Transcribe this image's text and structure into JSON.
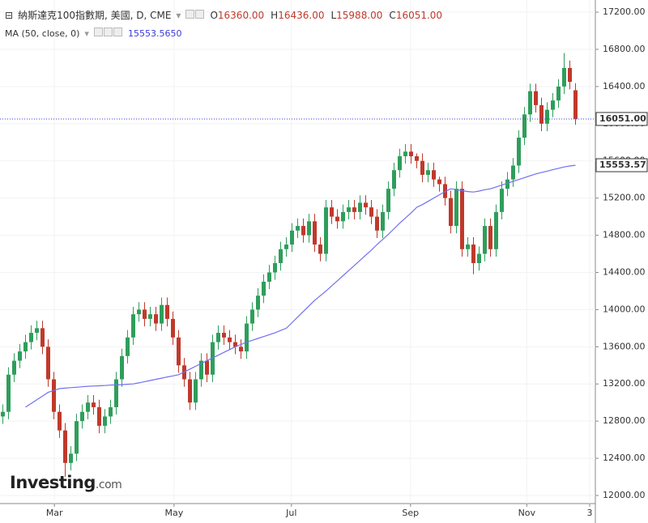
{
  "chart_data": {
    "type": "candlestick",
    "header": {
      "symbol": "納斯達克100指數期, 美國, D, CME",
      "ohlc": [
        {
          "key": "O",
          "text": "16360.00"
        },
        {
          "key": "H",
          "text": "16436.00"
        },
        {
          "key": "L",
          "text": "15988.00"
        },
        {
          "key": "C",
          "text": "16051.00"
        }
      ],
      "ma_name": "MA (50, close, 0)",
      "ma_value": "15553.5650"
    },
    "watermark": "Investing",
    "watermark_suffix": ".com",
    "xlim": [
      -0.5,
      104.5
    ],
    "xticks": [
      {
        "value": 9.1,
        "label": "Mar"
      },
      {
        "value": 30.2,
        "label": "May"
      },
      {
        "value": 50.9,
        "label": "Jul"
      },
      {
        "value": 71.9,
        "label": "Sep"
      },
      {
        "value": 92.4,
        "label": "Nov"
      },
      {
        "value": 103.5,
        "label": "3"
      }
    ],
    "ylim": [
      11913,
      17331
    ],
    "yticks": [
      {
        "value": 12000,
        "label": "12000.00"
      },
      {
        "value": 12400,
        "label": "12400.00"
      },
      {
        "value": 12800,
        "label": "12800.00"
      },
      {
        "value": 13200,
        "label": "13200.00"
      },
      {
        "value": 13600,
        "label": "13600.00"
      },
      {
        "value": 14000,
        "label": "14000.00"
      },
      {
        "value": 14400,
        "label": "14400.00"
      },
      {
        "value": 14800,
        "label": "14800.00"
      },
      {
        "value": 15200,
        "label": "15200.00"
      },
      {
        "value": 15600,
        "label": "15600.00"
      },
      {
        "value": 16000,
        "label": "16000.00"
      },
      {
        "value": 16400,
        "label": "16400.00"
      },
      {
        "value": 16800,
        "label": "16800.00"
      },
      {
        "value": 17200,
        "label": "17200.00"
      }
    ],
    "up_color": "#2e9e5b",
    "down_color": "#c0392b",
    "open": [
      12850,
      12900,
      13300,
      13450,
      13550,
      13650,
      13750,
      13800,
      13600,
      13250,
      12900,
      12700,
      12350,
      12450,
      12800,
      12900,
      13000,
      12950,
      12750,
      12850,
      12950,
      13250,
      13500,
      13700,
      13950,
      14000,
      13900,
      13950,
      13850,
      14050,
      13900,
      13700,
      13400,
      13250,
      13000,
      13250,
      13450,
      13300,
      13650,
      13750,
      13700,
      13650,
      13600,
      13550,
      13850,
      14000,
      14150,
      14300,
      14400,
      14500,
      14650,
      14700,
      14850,
      14900,
      14800,
      14950,
      14700,
      14600,
      15100,
      15000,
      14950,
      15050,
      15100,
      15050,
      15150,
      15100,
      15000,
      14850,
      15050,
      15300,
      15500,
      15650,
      15700,
      15650,
      15600,
      15450,
      15500,
      15400,
      15350,
      15200,
      14900,
      15300,
      14650,
      14700,
      14500,
      14600,
      14900,
      14650,
      15050,
      15300,
      15400,
      15550,
      15850,
      16100,
      16350,
      16200,
      16000,
      16150,
      16250,
      16400,
      16600,
      16360
    ],
    "high": [
      12980,
      13380,
      13530,
      13630,
      13730,
      13830,
      13880,
      13880,
      13680,
      13330,
      12980,
      12780,
      12530,
      12880,
      12980,
      13080,
      13080,
      13030,
      12930,
      13030,
      13330,
      13580,
      13780,
      14030,
      14080,
      14080,
      14030,
      14030,
      14130,
      14130,
      13980,
      13780,
      13480,
      13330,
      13330,
      13530,
      13530,
      13730,
      13830,
      13830,
      13780,
      13730,
      13680,
      13930,
      14080,
      14230,
      14380,
      14480,
      14580,
      14730,
      14780,
      14930,
      14980,
      14980,
      15030,
      15030,
      14780,
      15180,
      15180,
      15080,
      15130,
      15180,
      15180,
      15230,
      15230,
      15180,
      15080,
      15130,
      15380,
      15580,
      15730,
      15780,
      15780,
      15680,
      15680,
      15580,
      15580,
      15430,
      15430,
      15280,
      15380,
      15380,
      14780,
      14780,
      14680,
      14980,
      14980,
      15130,
      15380,
      15480,
      15630,
      15930,
      16180,
      16430,
      16430,
      16280,
      16230,
      16330,
      16480,
      16760,
      16680,
      16436
    ],
    "low": [
      12770,
      12820,
      13220,
      13370,
      13470,
      13570,
      13670,
      13520,
      13170,
      12820,
      12620,
      12200,
      12270,
      12370,
      12720,
      12820,
      12870,
      12670,
      12670,
      12770,
      12870,
      13170,
      13420,
      13620,
      13870,
      13820,
      13820,
      13770,
      13770,
      13820,
      13620,
      13320,
      13170,
      12920,
      12920,
      13170,
      13220,
      13220,
      13570,
      13620,
      13570,
      13520,
      13470,
      13470,
      13770,
      13920,
      14070,
      14220,
      14320,
      14420,
      14570,
      14620,
      14770,
      14720,
      14720,
      14620,
      14520,
      14520,
      14920,
      14870,
      14870,
      14970,
      14970,
      14970,
      15020,
      14920,
      14770,
      14770,
      14970,
      15220,
      15420,
      15570,
      15570,
      15520,
      15370,
      15370,
      15320,
      15270,
      15120,
      14820,
      14820,
      14570,
      14570,
      14380,
      14420,
      14520,
      14570,
      14570,
      14970,
      15220,
      15320,
      15470,
      15770,
      16020,
      16120,
      15920,
      15920,
      16070,
      16170,
      16320,
      16370,
      15988
    ],
    "close": [
      12900,
      13300,
      13450,
      13550,
      13650,
      13750,
      13800,
      13600,
      13250,
      12900,
      12700,
      12350,
      12450,
      12800,
      12900,
      13000,
      12950,
      12750,
      12850,
      12950,
      13250,
      13500,
      13700,
      13950,
      14000,
      13900,
      13950,
      13850,
      14050,
      13900,
      13700,
      13400,
      13250,
      13000,
      13250,
      13450,
      13300,
      13650,
      13750,
      13700,
      13650,
      13600,
      13550,
      13850,
      14000,
      14150,
      14300,
      14400,
      14500,
      14650,
      14700,
      14850,
      14900,
      14800,
      14950,
      14700,
      14600,
      15100,
      15000,
      14950,
      15050,
      15100,
      15050,
      15150,
      15100,
      15000,
      14850,
      15050,
      15300,
      15500,
      15650,
      15700,
      15650,
      15600,
      15450,
      15500,
      15400,
      15350,
      15200,
      14900,
      15300,
      14650,
      14700,
      14500,
      14600,
      14900,
      14650,
      15050,
      15300,
      15400,
      15550,
      15850,
      16100,
      16350,
      16200,
      16000,
      16150,
      16250,
      16400,
      16600,
      16450,
      16051
    ],
    "ma": {
      "color": "#7070f0",
      "values": [
        null,
        null,
        null,
        null,
        12950,
        12990,
        13030,
        13070,
        13110,
        13130,
        13150,
        13155,
        13160,
        13165,
        13170,
        13175,
        13178,
        13180,
        13183,
        13187,
        13190,
        13193,
        13197,
        13200,
        13212,
        13225,
        13237,
        13250,
        13262,
        13275,
        13287,
        13300,
        13330,
        13360,
        13390,
        13420,
        13450,
        13480,
        13510,
        13540,
        13570,
        13600,
        13625,
        13650,
        13670,
        13690,
        13710,
        13730,
        13750,
        13775,
        13800,
        13860,
        13920,
        13980,
        14040,
        14100,
        14150,
        14200,
        14255,
        14310,
        14365,
        14420,
        14475,
        14530,
        14585,
        14640,
        14700,
        14755,
        14810,
        14870,
        14930,
        14985,
        15040,
        15100,
        15130,
        15165,
        15200,
        15235,
        15270,
        15300,
        15290,
        15280,
        15270,
        15265,
        15275,
        15290,
        15300,
        15320,
        15340,
        15360,
        15380,
        15400,
        15420,
        15440,
        15460,
        15475,
        15490,
        15505,
        15520,
        15535,
        15545,
        15553.565
      ]
    },
    "price_tags": [
      {
        "value": 16051,
        "label": "16051.00",
        "line": true
      },
      {
        "value": 15553.57,
        "label": "15553.57",
        "line": false
      }
    ]
  }
}
